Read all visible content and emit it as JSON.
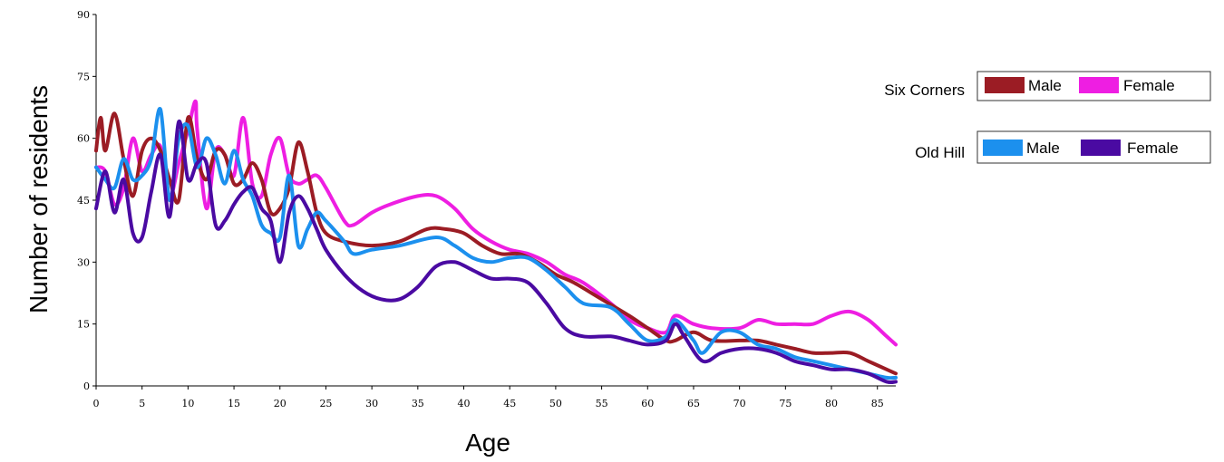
{
  "chart_data": {
    "type": "line",
    "title": "",
    "xlabel": "Age",
    "ylabel": "Number of residents",
    "xlim": [
      0,
      87
    ],
    "ylim": [
      0,
      90
    ],
    "x_ticks": [
      0,
      5,
      10,
      15,
      20,
      25,
      30,
      35,
      40,
      45,
      50,
      55,
      60,
      65,
      70,
      75,
      80,
      85
    ],
    "y_ticks": [
      0,
      15,
      30,
      45,
      60,
      75,
      90
    ],
    "grid": false,
    "legend_placement": "top-right",
    "legend": [
      {
        "group": "Six Corners",
        "items": [
          {
            "label": "Male",
            "color": "#9b1c24"
          },
          {
            "label": "Female",
            "color": "#ee1ee2"
          }
        ]
      },
      {
        "group": "Old Hill",
        "items": [
          {
            "label": "Male",
            "color": "#1c90ee"
          },
          {
            "label": "Female",
            "color": "#4a0aa2"
          }
        ]
      }
    ],
    "series": [
      {
        "group": "Six Corners",
        "name": "Male",
        "color": "#9b1c24",
        "points": [
          [
            0,
            57
          ],
          [
            0.5,
            65
          ],
          [
            1,
            57
          ],
          [
            2,
            66
          ],
          [
            3,
            55
          ],
          [
            4,
            46
          ],
          [
            5,
            57
          ],
          [
            6,
            60
          ],
          [
            7,
            57
          ],
          [
            8,
            50
          ],
          [
            9,
            45
          ],
          [
            10,
            65
          ],
          [
            11,
            55
          ],
          [
            12,
            50
          ],
          [
            13,
            57
          ],
          [
            14,
            56
          ],
          [
            15,
            49
          ],
          [
            16,
            50
          ],
          [
            17,
            54
          ],
          [
            18,
            50
          ],
          [
            19,
            42
          ],
          [
            20,
            43
          ],
          [
            21,
            48
          ],
          [
            22,
            59
          ],
          [
            23,
            52
          ],
          [
            24,
            42
          ],
          [
            25,
            37
          ],
          [
            27,
            35
          ],
          [
            30,
            34
          ],
          [
            33,
            35
          ],
          [
            36,
            38
          ],
          [
            38,
            38
          ],
          [
            40,
            37
          ],
          [
            42,
            34
          ],
          [
            44,
            32
          ],
          [
            46,
            32
          ],
          [
            48,
            30
          ],
          [
            50,
            27
          ],
          [
            52,
            25
          ],
          [
            55,
            21
          ],
          [
            58,
            17
          ],
          [
            60,
            14
          ],
          [
            62,
            11
          ],
          [
            63,
            11
          ],
          [
            65,
            13
          ],
          [
            67,
            11
          ],
          [
            70,
            11
          ],
          [
            72,
            11
          ],
          [
            74,
            10
          ],
          [
            76,
            9
          ],
          [
            78,
            8
          ],
          [
            80,
            8
          ],
          [
            82,
            8
          ],
          [
            84,
            6
          ],
          [
            86,
            4
          ],
          [
            87,
            3
          ]
        ]
      },
      {
        "group": "Six Corners",
        "name": "Female",
        "color": "#ee1ee2",
        "points": [
          [
            0,
            53
          ],
          [
            1,
            52
          ],
          [
            2,
            44
          ],
          [
            3,
            48
          ],
          [
            4,
            60
          ],
          [
            5,
            52
          ],
          [
            6,
            56
          ],
          [
            7,
            58
          ],
          [
            8,
            46
          ],
          [
            9,
            54
          ],
          [
            10,
            62
          ],
          [
            10.8,
            69
          ],
          [
            11,
            62
          ],
          [
            12,
            43
          ],
          [
            13,
            57
          ],
          [
            14,
            56
          ],
          [
            15,
            51
          ],
          [
            16,
            65
          ],
          [
            17,
            49
          ],
          [
            18,
            46
          ],
          [
            19,
            56
          ],
          [
            20,
            60
          ],
          [
            21,
            51
          ],
          [
            22,
            49
          ],
          [
            23,
            50
          ],
          [
            24,
            51
          ],
          [
            25,
            48
          ],
          [
            27,
            40
          ],
          [
            28,
            39
          ],
          [
            30,
            42
          ],
          [
            32,
            44
          ],
          [
            35,
            46
          ],
          [
            37,
            46
          ],
          [
            39,
            43
          ],
          [
            41,
            38
          ],
          [
            43,
            35
          ],
          [
            45,
            33
          ],
          [
            47,
            32
          ],
          [
            49,
            30
          ],
          [
            51,
            27
          ],
          [
            53,
            25
          ],
          [
            56,
            20
          ],
          [
            58,
            16
          ],
          [
            60,
            14
          ],
          [
            62,
            13
          ],
          [
            63,
            17
          ],
          [
            65,
            15
          ],
          [
            67,
            14
          ],
          [
            70,
            14
          ],
          [
            72,
            16
          ],
          [
            74,
            15
          ],
          [
            76,
            15
          ],
          [
            78,
            15
          ],
          [
            80,
            17
          ],
          [
            82,
            18
          ],
          [
            84,
            16
          ],
          [
            86,
            12
          ],
          [
            87,
            10
          ]
        ]
      },
      {
        "group": "Old Hill",
        "name": "Male",
        "color": "#1c90ee",
        "points": [
          [
            0,
            53
          ],
          [
            1,
            50
          ],
          [
            2,
            48
          ],
          [
            3,
            55
          ],
          [
            4,
            50
          ],
          [
            5,
            51
          ],
          [
            6,
            55
          ],
          [
            7,
            67
          ],
          [
            8,
            45
          ],
          [
            9,
            60
          ],
          [
            10,
            63
          ],
          [
            11,
            53
          ],
          [
            12,
            60
          ],
          [
            13,
            56
          ],
          [
            14,
            49
          ],
          [
            15,
            57
          ],
          [
            16,
            50
          ],
          [
            17,
            46
          ],
          [
            18,
            39
          ],
          [
            19,
            37
          ],
          [
            20,
            36
          ],
          [
            21,
            51
          ],
          [
            22,
            34
          ],
          [
            23,
            38
          ],
          [
            24,
            42
          ],
          [
            25,
            40
          ],
          [
            27,
            35
          ],
          [
            28,
            32
          ],
          [
            30,
            33
          ],
          [
            33,
            34
          ],
          [
            37,
            36
          ],
          [
            39,
            34
          ],
          [
            41,
            31
          ],
          [
            43,
            30
          ],
          [
            45,
            31
          ],
          [
            47,
            31
          ],
          [
            49,
            28
          ],
          [
            51,
            24
          ],
          [
            53,
            20
          ],
          [
            56,
            19
          ],
          [
            58,
            15
          ],
          [
            60,
            11
          ],
          [
            62,
            12
          ],
          [
            63,
            16
          ],
          [
            65,
            11
          ],
          [
            66,
            8
          ],
          [
            68,
            13
          ],
          [
            70,
            13
          ],
          [
            72,
            10
          ],
          [
            74,
            9
          ],
          [
            76,
            7
          ],
          [
            78,
            6
          ],
          [
            80,
            5
          ],
          [
            82,
            4
          ],
          [
            84,
            3
          ],
          [
            86,
            2
          ],
          [
            87,
            2
          ]
        ]
      },
      {
        "group": "Old Hill",
        "name": "Female",
        "color": "#4a0aa2",
        "points": [
          [
            0,
            43
          ],
          [
            1,
            52
          ],
          [
            2,
            42
          ],
          [
            3,
            50
          ],
          [
            4,
            37
          ],
          [
            5,
            36
          ],
          [
            6,
            47
          ],
          [
            7,
            56
          ],
          [
            8,
            41
          ],
          [
            9,
            64
          ],
          [
            10,
            50
          ],
          [
            11,
            54
          ],
          [
            12,
            54
          ],
          [
            13,
            39
          ],
          [
            14,
            40
          ],
          [
            15,
            44
          ],
          [
            16,
            47
          ],
          [
            17,
            48
          ],
          [
            18,
            43
          ],
          [
            19,
            40
          ],
          [
            20,
            30
          ],
          [
            21,
            42
          ],
          [
            22,
            46
          ],
          [
            23,
            43
          ],
          [
            24,
            38
          ],
          [
            25,
            33
          ],
          [
            27,
            27
          ],
          [
            29,
            23
          ],
          [
            31,
            21
          ],
          [
            33,
            21
          ],
          [
            35,
            24
          ],
          [
            37,
            29
          ],
          [
            39,
            30
          ],
          [
            41,
            28
          ],
          [
            43,
            26
          ],
          [
            45,
            26
          ],
          [
            47,
            25
          ],
          [
            49,
            20
          ],
          [
            51,
            14
          ],
          [
            53,
            12
          ],
          [
            56,
            12
          ],
          [
            58,
            11
          ],
          [
            60,
            10
          ],
          [
            62,
            11
          ],
          [
            63,
            15
          ],
          [
            64,
            12
          ],
          [
            66,
            6
          ],
          [
            68,
            8
          ],
          [
            70,
            9
          ],
          [
            72,
            9
          ],
          [
            74,
            8
          ],
          [
            76,
            6
          ],
          [
            78,
            5
          ],
          [
            80,
            4
          ],
          [
            82,
            4
          ],
          [
            84,
            3
          ],
          [
            86,
            1
          ],
          [
            87,
            1
          ]
        ]
      }
    ]
  }
}
